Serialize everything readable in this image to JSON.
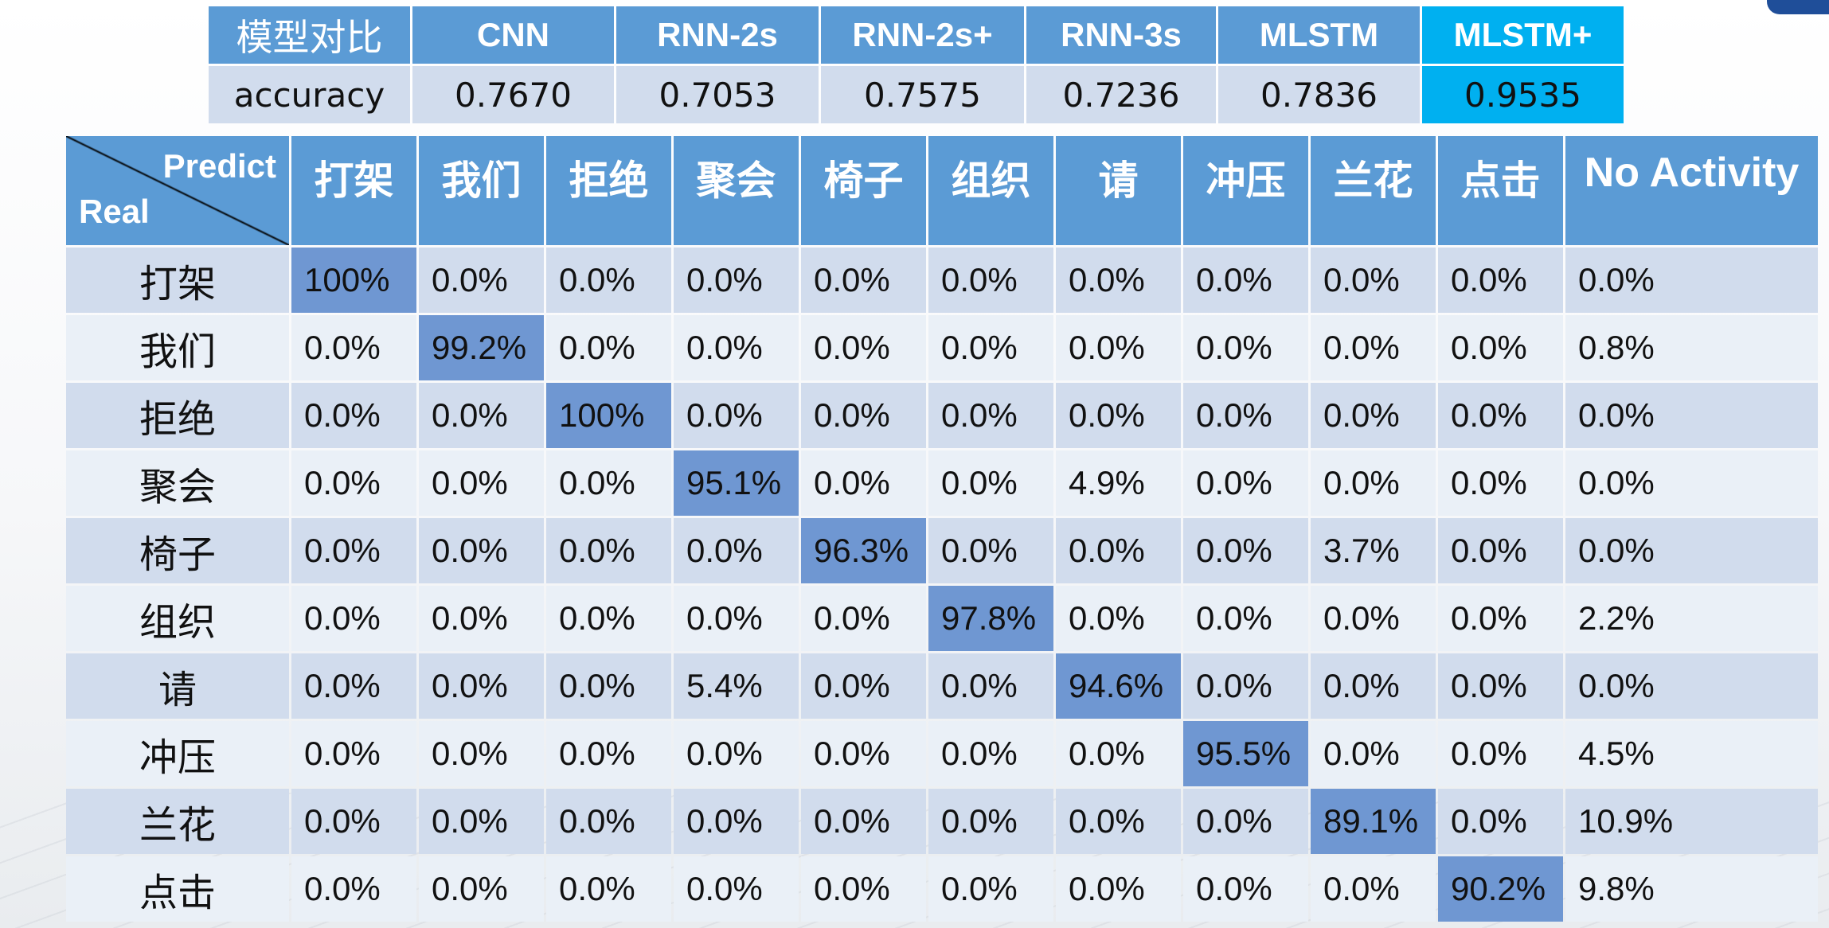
{
  "accuracy_table": {
    "corner_label": "模型对比",
    "row_label": "accuracy",
    "models": [
      "CNN",
      "RNN-2s",
      "RNN-2s+",
      "RNN-3s",
      "MLSTM",
      "MLSTM+"
    ],
    "values": [
      "0.7670",
      "0.7053",
      "0.7575",
      "0.7236",
      "0.7836",
      "0.9535"
    ],
    "highlight_color": "#00b0f0"
  },
  "colors": {
    "header_blue": "#5b9bd5",
    "row_light": "#d1dced",
    "row_lighter": "#eaf0f7",
    "diagonal": "#6f97d2"
  },
  "chart_data": {
    "type": "heatmap",
    "title": "",
    "xlabel": "Predict",
    "ylabel": "Real",
    "x_categories": [
      "打架",
      "我们",
      "拒绝",
      "聚会",
      "椅子",
      "组织",
      "请",
      "冲压",
      "兰花",
      "点击",
      "No Activity"
    ],
    "y_categories": [
      "打架",
      "我们",
      "拒绝",
      "聚会",
      "椅子",
      "组织",
      "请",
      "冲压",
      "兰花",
      "点击"
    ],
    "cells": [
      [
        "100%",
        "0.0%",
        "0.0%",
        "0.0%",
        "0.0%",
        "0.0%",
        "0.0%",
        "0.0%",
        "0.0%",
        "0.0%",
        "0.0%"
      ],
      [
        "0.0%",
        "99.2%",
        "0.0%",
        "0.0%",
        "0.0%",
        "0.0%",
        "0.0%",
        "0.0%",
        "0.0%",
        "0.0%",
        "0.8%"
      ],
      [
        "0.0%",
        "0.0%",
        "100%",
        "0.0%",
        "0.0%",
        "0.0%",
        "0.0%",
        "0.0%",
        "0.0%",
        "0.0%",
        "0.0%"
      ],
      [
        "0.0%",
        "0.0%",
        "0.0%",
        "95.1%",
        "0.0%",
        "0.0%",
        "4.9%",
        "0.0%",
        "0.0%",
        "0.0%",
        "0.0%"
      ],
      [
        "0.0%",
        "0.0%",
        "0.0%",
        "0.0%",
        "96.3%",
        "0.0%",
        "0.0%",
        "0.0%",
        "3.7%",
        "0.0%",
        "0.0%"
      ],
      [
        "0.0%",
        "0.0%",
        "0.0%",
        "0.0%",
        "0.0%",
        "97.8%",
        "0.0%",
        "0.0%",
        "0.0%",
        "0.0%",
        "2.2%"
      ],
      [
        "0.0%",
        "0.0%",
        "0.0%",
        "5.4%",
        "0.0%",
        "0.0%",
        "94.6%",
        "0.0%",
        "0.0%",
        "0.0%",
        "0.0%"
      ],
      [
        "0.0%",
        "0.0%",
        "0.0%",
        "0.0%",
        "0.0%",
        "0.0%",
        "0.0%",
        "95.5%",
        "0.0%",
        "0.0%",
        "4.5%"
      ],
      [
        "0.0%",
        "0.0%",
        "0.0%",
        "0.0%",
        "0.0%",
        "0.0%",
        "0.0%",
        "0.0%",
        "89.1%",
        "0.0%",
        "10.9%"
      ],
      [
        "0.0%",
        "0.0%",
        "0.0%",
        "0.0%",
        "0.0%",
        "0.0%",
        "0.0%",
        "0.0%",
        "0.0%",
        "90.2%",
        "9.8%"
      ]
    ],
    "values": [
      [
        100,
        0,
        0,
        0,
        0,
        0,
        0,
        0,
        0,
        0,
        0
      ],
      [
        0,
        99.2,
        0,
        0,
        0,
        0,
        0,
        0,
        0,
        0,
        0.8
      ],
      [
        0,
        0,
        100,
        0,
        0,
        0,
        0,
        0,
        0,
        0,
        0
      ],
      [
        0,
        0,
        0,
        95.1,
        0,
        0,
        4.9,
        0,
        0,
        0,
        0
      ],
      [
        0,
        0,
        0,
        0,
        96.3,
        0,
        0,
        0,
        3.7,
        0,
        0
      ],
      [
        0,
        0,
        0,
        0,
        0,
        97.8,
        0,
        0,
        0,
        0,
        2.2
      ],
      [
        0,
        0,
        0,
        5.4,
        0,
        0,
        94.6,
        0,
        0,
        0,
        0
      ],
      [
        0,
        0,
        0,
        0,
        0,
        0,
        0,
        95.5,
        0,
        0,
        4.5
      ],
      [
        0,
        0,
        0,
        0,
        0,
        0,
        0,
        0,
        89.1,
        0,
        10.9
      ],
      [
        0,
        0,
        0,
        0,
        0,
        0,
        0,
        0,
        0,
        90.2,
        9.8
      ]
    ],
    "value_unit": "%"
  }
}
